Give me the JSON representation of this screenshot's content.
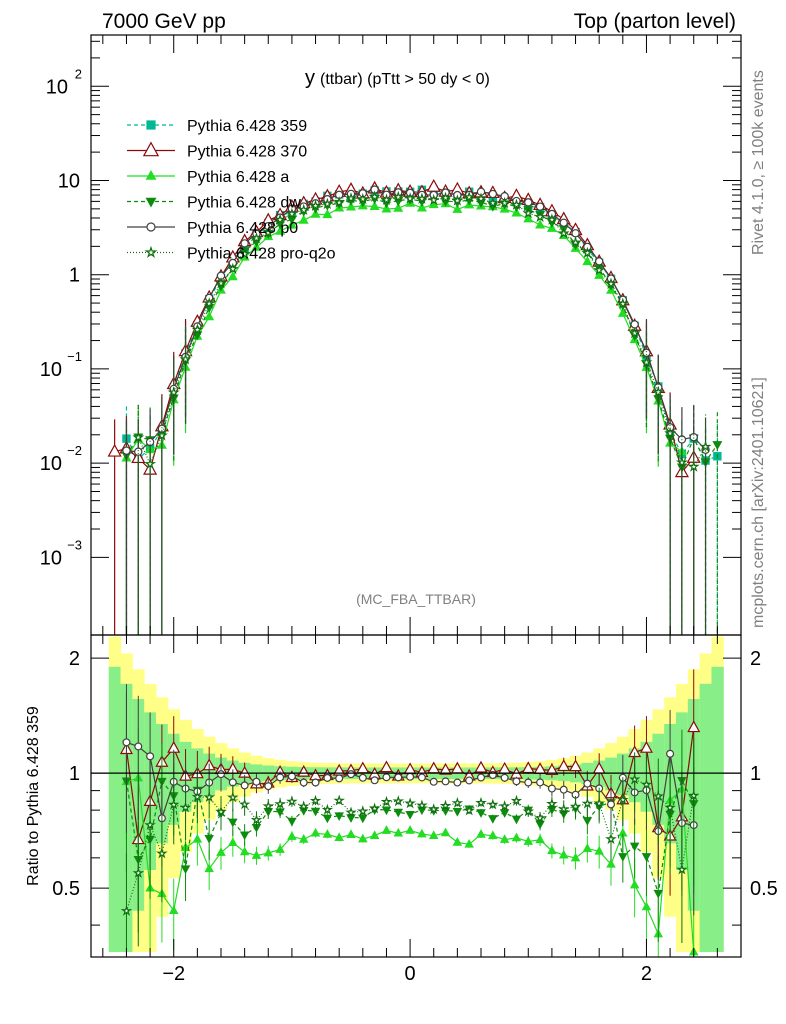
{
  "header": {
    "energy_label": "7000 GeV pp",
    "process_label": "Top (parton level)"
  },
  "side_labels": {
    "rivet": "Rivet 4.1.0, ≥ 100k events",
    "source": "mcplots.cern.ch [arXiv:2401.10621]"
  },
  "chart_data": [
    {
      "type": "line",
      "panel": "main",
      "title_main": "y",
      "title_sub": "(ttbar) (pTtt > 50 dy < 0)",
      "watermark": "(MC_FBA_TTBAR)",
      "xlabel": "",
      "ylabel": "",
      "xlim": [
        -2.7,
        2.8
      ],
      "ylim_log": [
        0.00015,
        350
      ],
      "y_tick_labels": [
        "10^-3",
        "10^-2",
        "10^-1",
        "1",
        "10",
        "10^2"
      ],
      "y_ticks": [
        0.001,
        0.01,
        0.1,
        1,
        10,
        100
      ],
      "y_tick_text": [
        {
          "base": "10",
          "exp": "−3"
        },
        {
          "base": "10",
          "exp": "−2"
        },
        {
          "base": "10",
          "exp": "−1"
        },
        {
          "base": "1",
          "exp": ""
        },
        {
          "base": "10",
          "exp": ""
        },
        {
          "base": "10",
          "exp": "2"
        }
      ],
      "shape": {
        "peak_x": 0.05,
        "width": 1.45
      },
      "series": [
        {
          "name": "Pythia 6.428 359",
          "color": "#00b894",
          "marker": "square",
          "dash": "4,3",
          "peak": 7.5,
          "cut": [
            -2.45,
            2.62
          ]
        },
        {
          "name": "Pythia 6.428 370",
          "color": "#8b0a0a",
          "marker": "triangle-open",
          "dash": "",
          "peak": 8.0,
          "cut": [
            -2.55,
            2.45
          ]
        },
        {
          "name": "Pythia 6.428 a",
          "color": "#22dd22",
          "marker": "triangle",
          "dash": "",
          "peak": 5.4,
          "cut": [
            -2.4,
            2.35
          ]
        },
        {
          "name": "Pythia 6.428 dw",
          "color": "#0c8c0c",
          "marker": "triangle-down",
          "dash": "4,3",
          "peak": 6.3,
          "cut": [
            -2.45,
            2.62
          ]
        },
        {
          "name": "Pythia 6.428 p0",
          "color": "#404040",
          "marker": "circle-open",
          "dash": "",
          "peak": 7.6,
          "cut": [
            -2.45,
            2.5
          ]
        },
        {
          "name": "Pythia 6.428 pro-q2o",
          "color": "#107010",
          "marker": "star-open",
          "dash": "1,2",
          "peak": 6.5,
          "cut": [
            -2.35,
            2.55
          ]
        }
      ]
    },
    {
      "type": "line",
      "panel": "ratio",
      "ylabel": "Ratio to Pythia 6.428 359",
      "xlim": [
        -2.7,
        2.8
      ],
      "ylim": [
        0.33,
        2.3
      ],
      "x_tick_labels": [
        "−2",
        "0",
        "2"
      ],
      "x_ticks": [
        -2,
        0,
        2
      ],
      "y_tick_labels": [
        "0.5",
        "1",
        "2"
      ],
      "y_ticks": [
        0.5,
        1,
        2
      ],
      "reference_line": 1,
      "series": [
        {
          "name": "Pythia 6.428 370",
          "center_ratio": 1.01
        },
        {
          "name": "Pythia 6.428 a",
          "center_ratio": 0.68
        },
        {
          "name": "Pythia 6.428 dw",
          "center_ratio": 0.78
        },
        {
          "name": "Pythia 6.428 p0",
          "center_ratio": 0.97
        },
        {
          "name": "Pythia 6.428 pro-q2o",
          "center_ratio": 0.82
        }
      ]
    }
  ]
}
